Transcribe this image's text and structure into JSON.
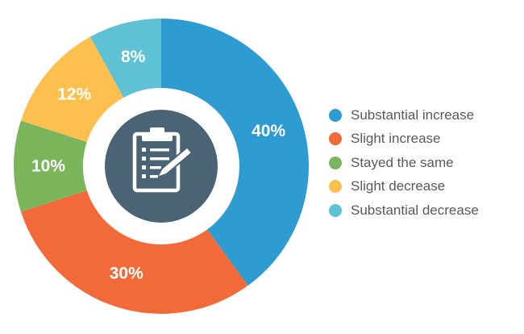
{
  "chart_data": {
    "type": "pie",
    "title": "",
    "categories": [
      "Substantial increase",
      "Slight increase",
      "Stayed the same",
      "Slight decrease",
      "Substantial decrease"
    ],
    "values": [
      40,
      30,
      10,
      12,
      8
    ],
    "value_labels": [
      "40%",
      "30%",
      "10%",
      "12%",
      "8%"
    ],
    "colors": [
      "#2e9bd1",
      "#f26a3a",
      "#7ab55c",
      "#fdc04f",
      "#5fc1d4"
    ],
    "legend_position": "right",
    "center_icon": "clipboard-pen-icon",
    "center_icon_color": "#4a6375"
  }
}
